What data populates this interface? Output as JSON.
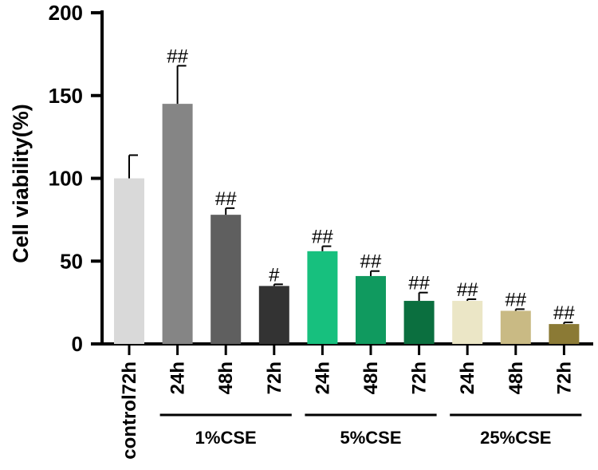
{
  "chart_data": {
    "type": "bar",
    "ylabel": "Cell viability(%)",
    "xlabel": "",
    "ylim": [
      0,
      200
    ],
    "yticks": [
      0,
      50,
      100,
      150,
      200
    ],
    "grid": false,
    "categories": [
      "control72h",
      "24h",
      "48h",
      "72h",
      "24h",
      "48h",
      "72h",
      "24h",
      "48h",
      "72h"
    ],
    "values": [
      100,
      145,
      78,
      35,
      56,
      41,
      26,
      26,
      20,
      12
    ],
    "errors": [
      14,
      23,
      4,
      1,
      3,
      3,
      5,
      1,
      1,
      1
    ],
    "significance": [
      "",
      "##",
      "##",
      "#",
      "##",
      "##",
      "##",
      "##",
      "##",
      "##"
    ],
    "colors": [
      "#d9d9d9",
      "#858585",
      "#5f5f5f",
      "#333333",
      "#17c07e",
      "#109a5f",
      "#0b6f3f",
      "#ebe6c6",
      "#c9ba84",
      "#8b7a35"
    ],
    "groups": [
      {
        "label": "1%CSE",
        "start": 1,
        "end": 3
      },
      {
        "label": "5%CSE",
        "start": 4,
        "end": 6
      },
      {
        "label": "25%CSE",
        "start": 7,
        "end": 9
      }
    ]
  }
}
